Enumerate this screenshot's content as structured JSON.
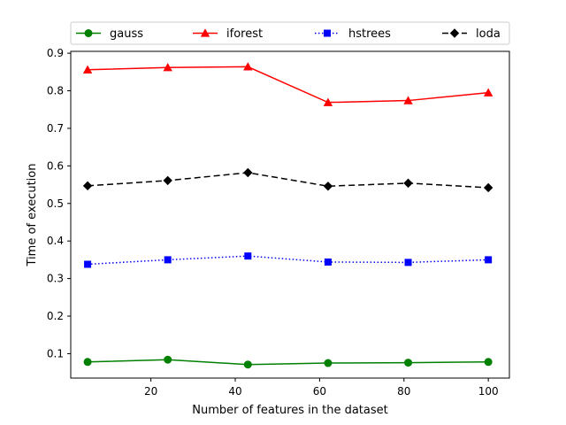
{
  "chart_data": {
    "type": "line",
    "xlabel": "Number of features in the dataset",
    "ylabel": "Time of execution",
    "xlim": [
      1,
      105
    ],
    "ylim": [
      0.035,
      0.905
    ],
    "xticks": [
      20,
      40,
      60,
      80,
      100
    ],
    "yticks": [
      0.1,
      0.2,
      0.3,
      0.4,
      0.5,
      0.6,
      0.7,
      0.8,
      0.9
    ],
    "x": [
      5,
      24,
      43,
      62,
      81,
      100
    ],
    "grid": false,
    "legend_position": "top",
    "series": [
      {
        "name": "gauss",
        "color": "#008000",
        "line": "solid",
        "marker": "circle",
        "values": [
          0.078,
          0.084,
          0.071,
          0.075,
          0.076,
          0.078
        ]
      },
      {
        "name": "iforest",
        "color": "#ff0000",
        "line": "solid",
        "marker": "triangle",
        "values": [
          0.856,
          0.862,
          0.864,
          0.769,
          0.774,
          0.795
        ]
      },
      {
        "name": "hstrees",
        "color": "#0000ff",
        "line": "dotted",
        "marker": "square",
        "values": [
          0.338,
          0.35,
          0.36,
          0.344,
          0.343,
          0.35
        ]
      },
      {
        "name": "loda",
        "color": "#000000",
        "line": "dashed",
        "marker": "diamond",
        "values": [
          0.547,
          0.561,
          0.582,
          0.546,
          0.554,
          0.542
        ]
      }
    ]
  }
}
